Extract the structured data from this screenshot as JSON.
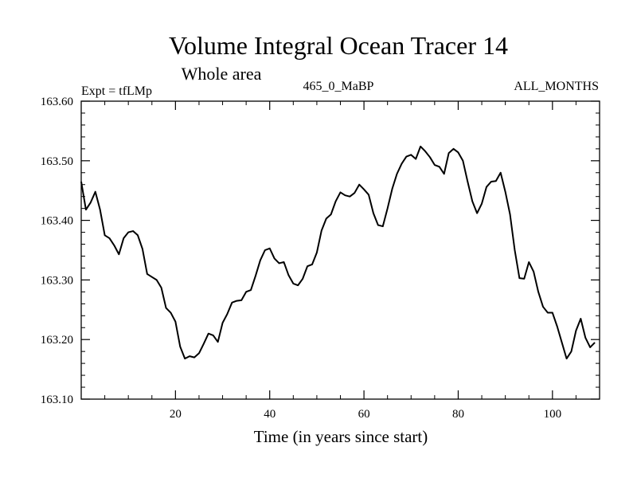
{
  "chart_data": {
    "type": "line",
    "title": "Volume Integral Ocean Tracer 14",
    "subtitle": "Whole area",
    "left_label": "Expt = tfLMp",
    "center_label": "465_0_MaBP",
    "right_label": "ALL_MONTHS",
    "xlabel": "Time (in years since start)",
    "ylabel": "",
    "xlim": [
      0,
      110
    ],
    "ylim": [
      163.1,
      163.6
    ],
    "xticks": [
      20,
      40,
      60,
      80,
      100
    ],
    "yticks": [
      163.1,
      163.2,
      163.3,
      163.4,
      163.5,
      163.6
    ],
    "ytick_labels": [
      "163.10",
      "163.20",
      "163.30",
      "163.40",
      "163.50",
      "163.60"
    ],
    "grid": false,
    "line_color": "#000000",
    "series": [
      {
        "name": "tfLMp",
        "x_start": 0,
        "x_step": 1,
        "values": [
          163.465,
          163.418,
          163.43,
          163.448,
          163.418,
          163.375,
          163.37,
          163.358,
          163.343,
          163.37,
          163.38,
          163.382,
          163.375,
          163.352,
          163.31,
          163.305,
          163.3,
          163.287,
          163.253,
          163.245,
          163.23,
          163.188,
          163.168,
          163.172,
          163.17,
          163.177,
          163.193,
          163.21,
          163.207,
          163.196,
          163.228,
          163.243,
          163.262,
          163.265,
          163.266,
          163.28,
          163.283,
          163.307,
          163.333,
          163.35,
          163.353,
          163.336,
          163.328,
          163.33,
          163.308,
          163.294,
          163.291,
          163.302,
          163.323,
          163.326,
          163.346,
          163.383,
          163.403,
          163.41,
          163.432,
          163.447,
          163.442,
          163.44,
          163.446,
          163.46,
          163.452,
          163.443,
          163.412,
          163.392,
          163.39,
          163.42,
          163.453,
          163.478,
          163.495,
          163.507,
          163.51,
          163.503,
          163.524,
          163.516,
          163.506,
          163.493,
          163.49,
          163.478,
          163.513,
          163.52,
          163.514,
          163.5,
          163.465,
          163.432,
          163.412,
          163.428,
          163.456,
          163.465,
          163.466,
          163.48,
          163.448,
          163.41,
          163.35,
          163.303,
          163.302,
          163.33,
          163.314,
          163.28,
          163.255,
          163.245,
          163.245,
          163.222,
          163.195,
          163.168,
          163.18,
          163.215,
          163.235,
          163.203,
          163.187,
          163.195
        ]
      }
    ]
  }
}
